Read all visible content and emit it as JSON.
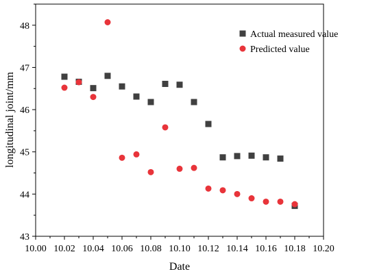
{
  "chart_data": {
    "type": "scatter",
    "xlabel": "Date",
    "ylabel": "longitudinal joint/mm",
    "xlim": [
      10.0,
      10.2
    ],
    "ylim": [
      43,
      48.5
    ],
    "x_ticks": [
      "10.00",
      "10.02",
      "10.04",
      "10.06",
      "10.08",
      "10.10",
      "10.12",
      "10.14",
      "10.16",
      "10.18",
      "10.20"
    ],
    "y_ticks": [
      "43",
      "44",
      "45",
      "46",
      "47",
      "48"
    ],
    "legend_position": "top-right",
    "series": [
      {
        "name": "Actual measured value",
        "marker": "square",
        "color": "#404040",
        "points": [
          [
            10.02,
            46.78
          ],
          [
            10.03,
            46.66
          ],
          [
            10.04,
            46.51
          ],
          [
            10.05,
            46.8
          ],
          [
            10.06,
            46.55
          ],
          [
            10.07,
            46.31
          ],
          [
            10.08,
            46.18
          ],
          [
            10.09,
            46.61
          ],
          [
            10.1,
            46.59
          ],
          [
            10.11,
            46.18
          ],
          [
            10.12,
            45.66
          ],
          [
            10.13,
            44.87
          ],
          [
            10.14,
            44.9
          ],
          [
            10.15,
            44.91
          ],
          [
            10.16,
            44.87
          ],
          [
            10.17,
            44.84
          ],
          [
            10.18,
            43.72
          ]
        ]
      },
      {
        "name": "Predicted value",
        "marker": "circle",
        "color": "#e8343a",
        "points": [
          [
            10.02,
            46.52
          ],
          [
            10.03,
            46.65
          ],
          [
            10.04,
            46.3
          ],
          [
            10.05,
            48.07
          ],
          [
            10.06,
            44.86
          ],
          [
            10.07,
            44.94
          ],
          [
            10.08,
            44.52
          ],
          [
            10.09,
            45.58
          ],
          [
            10.1,
            44.6
          ],
          [
            10.11,
            44.62
          ],
          [
            10.12,
            44.13
          ],
          [
            10.13,
            44.09
          ],
          [
            10.14,
            44.0
          ],
          [
            10.15,
            43.9
          ],
          [
            10.16,
            43.82
          ],
          [
            10.17,
            43.82
          ],
          [
            10.18,
            43.76
          ]
        ]
      }
    ]
  }
}
